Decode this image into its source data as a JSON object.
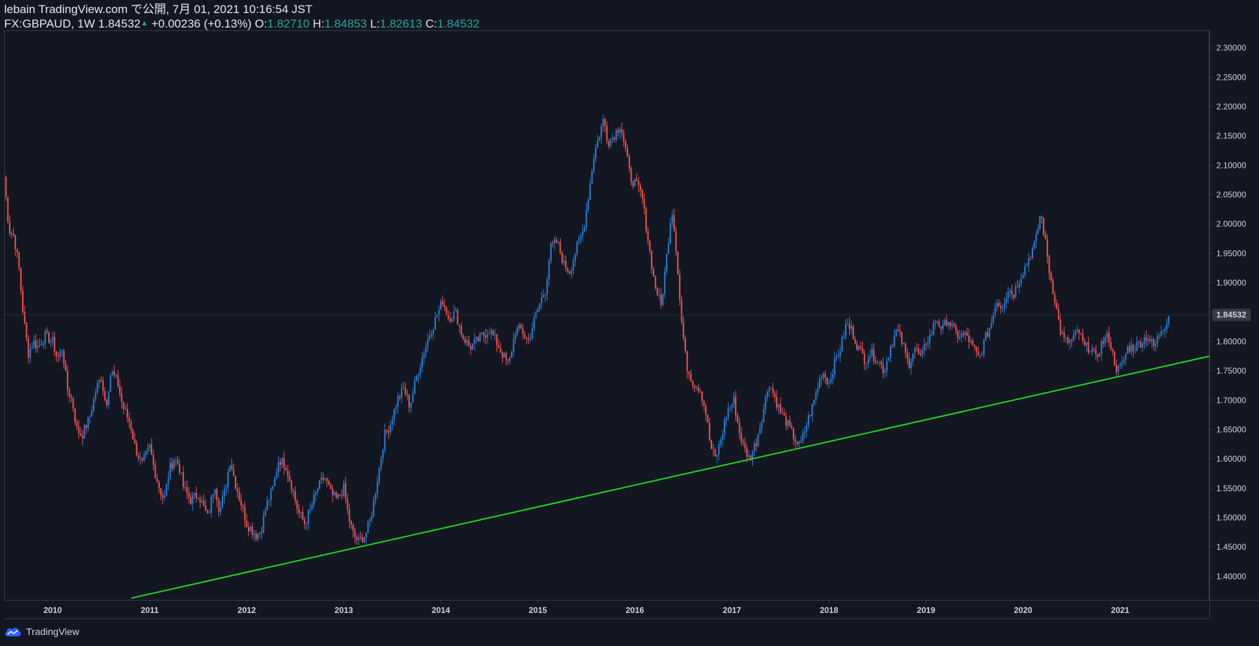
{
  "header": {
    "line1": "lebain TradingView.com で公開, 7月 01, 2021 10:16:54 JST",
    "symbol_prefix": "FX:GBPAUD, 1W 1.84532",
    "change": "+0.00236 (+0.13%)",
    "o_label": "O:",
    "o_value": "1.82710",
    "h_label": "H:",
    "h_value": "1.84853",
    "l_label": "L:",
    "l_value": "1.82613",
    "c_label": "C:",
    "c_value": "1.84532"
  },
  "footer": {
    "brand": "TradingView"
  },
  "colors": {
    "background": "#131722",
    "bullish": "#2a7fd4",
    "bearish": "#ef5350",
    "trendline": "#22d422",
    "last_price_tag": "#363a45"
  },
  "chart_data": {
    "type": "candlestick",
    "symbol": "FX:GBPAUD",
    "timeframe": "1W",
    "ylim": [
      1.36,
      2.33
    ],
    "xlim": [
      2009.5,
      2021.92
    ],
    "y_ticks": [
      "1.40000",
      "1.45000",
      "1.50000",
      "1.55000",
      "1.60000",
      "1.65000",
      "1.70000",
      "1.75000",
      "1.80000",
      "1.85000",
      "1.90000",
      "1.95000",
      "2.00000",
      "2.05000",
      "2.10000",
      "2.15000",
      "2.20000",
      "2.25000",
      "2.30000"
    ],
    "x_ticks": [
      "2010",
      "2011",
      "2012",
      "2013",
      "2014",
      "2015",
      "2016",
      "2017",
      "2018",
      "2019",
      "2020",
      "2021"
    ],
    "last_price": "1.84532",
    "trendline": {
      "x1": 2010.81,
      "y1": 1.363,
      "x2": 2021.92,
      "y2": 1.775
    },
    "price_path": [
      [
        2009.5,
        2.08
      ],
      [
        2009.55,
        1.99
      ],
      [
        2009.6,
        1.98
      ],
      [
        2009.65,
        1.93
      ],
      [
        2009.7,
        1.84
      ],
      [
        2009.75,
        1.78
      ],
      [
        2009.8,
        1.8
      ],
      [
        2009.85,
        1.79
      ],
      [
        2009.92,
        1.81
      ],
      [
        2010.0,
        1.8
      ],
      [
        2010.05,
        1.77
      ],
      [
        2010.1,
        1.79
      ],
      [
        2010.15,
        1.72
      ],
      [
        2010.2,
        1.7
      ],
      [
        2010.25,
        1.65
      ],
      [
        2010.3,
        1.64
      ],
      [
        2010.38,
        1.67
      ],
      [
        2010.45,
        1.72
      ],
      [
        2010.5,
        1.74
      ],
      [
        2010.55,
        1.69
      ],
      [
        2010.6,
        1.75
      ],
      [
        2010.67,
        1.73
      ],
      [
        2010.72,
        1.69
      ],
      [
        2010.8,
        1.66
      ],
      [
        2010.85,
        1.62
      ],
      [
        2010.92,
        1.59
      ],
      [
        2011.0,
        1.62
      ],
      [
        2011.05,
        1.58
      ],
      [
        2011.1,
        1.55
      ],
      [
        2011.15,
        1.53
      ],
      [
        2011.2,
        1.58
      ],
      [
        2011.25,
        1.6
      ],
      [
        2011.3,
        1.59
      ],
      [
        2011.35,
        1.55
      ],
      [
        2011.42,
        1.53
      ],
      [
        2011.5,
        1.54
      ],
      [
        2011.55,
        1.52
      ],
      [
        2011.6,
        1.5
      ],
      [
        2011.67,
        1.56
      ],
      [
        2011.72,
        1.51
      ],
      [
        2011.78,
        1.55
      ],
      [
        2011.83,
        1.6
      ],
      [
        2011.88,
        1.56
      ],
      [
        2011.95,
        1.52
      ],
      [
        2012.0,
        1.49
      ],
      [
        2012.05,
        1.48
      ],
      [
        2012.1,
        1.47
      ],
      [
        2012.15,
        1.48
      ],
      [
        2012.2,
        1.52
      ],
      [
        2012.27,
        1.55
      ],
      [
        2012.33,
        1.6
      ],
      [
        2012.4,
        1.59
      ],
      [
        2012.47,
        1.55
      ],
      [
        2012.53,
        1.51
      ],
      [
        2012.6,
        1.49
      ],
      [
        2012.67,
        1.52
      ],
      [
        2012.73,
        1.55
      ],
      [
        2012.8,
        1.57
      ],
      [
        2012.87,
        1.54
      ],
      [
        2012.93,
        1.53
      ],
      [
        2013.0,
        1.55
      ],
      [
        2013.05,
        1.5
      ],
      [
        2013.1,
        1.47
      ],
      [
        2013.15,
        1.46
      ],
      [
        2013.22,
        1.47
      ],
      [
        2013.28,
        1.5
      ],
      [
        2013.35,
        1.57
      ],
      [
        2013.42,
        1.64
      ],
      [
        2013.48,
        1.66
      ],
      [
        2013.55,
        1.7
      ],
      [
        2013.62,
        1.72
      ],
      [
        2013.68,
        1.69
      ],
      [
        2013.75,
        1.74
      ],
      [
        2013.82,
        1.78
      ],
      [
        2013.88,
        1.81
      ],
      [
        2013.95,
        1.84
      ],
      [
        2014.02,
        1.87
      ],
      [
        2014.08,
        1.84
      ],
      [
        2014.15,
        1.85
      ],
      [
        2014.22,
        1.81
      ],
      [
        2014.3,
        1.79
      ],
      [
        2014.37,
        1.8
      ],
      [
        2014.43,
        1.81
      ],
      [
        2014.5,
        1.82
      ],
      [
        2014.57,
        1.8
      ],
      [
        2014.63,
        1.78
      ],
      [
        2014.7,
        1.76
      ],
      [
        2014.77,
        1.82
      ],
      [
        2014.83,
        1.82
      ],
      [
        2014.9,
        1.8
      ],
      [
        2014.97,
        1.84
      ],
      [
        2015.03,
        1.87
      ],
      [
        2015.08,
        1.89
      ],
      [
        2015.13,
        1.96
      ],
      [
        2015.2,
        1.97
      ],
      [
        2015.27,
        1.93
      ],
      [
        2015.33,
        1.92
      ],
      [
        2015.4,
        1.96
      ],
      [
        2015.47,
        1.99
      ],
      [
        2015.53,
        2.06
      ],
      [
        2015.58,
        2.12
      ],
      [
        2015.63,
        2.15
      ],
      [
        2015.68,
        2.18
      ],
      [
        2015.72,
        2.14
      ],
      [
        2015.78,
        2.15
      ],
      [
        2015.85,
        2.17
      ],
      [
        2015.9,
        2.13
      ],
      [
        2015.95,
        2.08
      ],
      [
        2016.0,
        2.07
      ],
      [
        2016.07,
        2.05
      ],
      [
        2016.13,
        1.98
      ],
      [
        2016.2,
        1.9
      ],
      [
        2016.27,
        1.86
      ],
      [
        2016.33,
        1.95
      ],
      [
        2016.38,
        2.03
      ],
      [
        2016.43,
        1.95
      ],
      [
        2016.47,
        1.85
      ],
      [
        2016.53,
        1.76
      ],
      [
        2016.6,
        1.73
      ],
      [
        2016.67,
        1.72
      ],
      [
        2016.73,
        1.68
      ],
      [
        2016.78,
        1.62
      ],
      [
        2016.83,
        1.6
      ],
      [
        2016.88,
        1.63
      ],
      [
        2016.95,
        1.68
      ],
      [
        2017.02,
        1.7
      ],
      [
        2017.07,
        1.65
      ],
      [
        2017.12,
        1.62
      ],
      [
        2017.18,
        1.6
      ],
      [
        2017.25,
        1.63
      ],
      [
        2017.32,
        1.68
      ],
      [
        2017.38,
        1.73
      ],
      [
        2017.43,
        1.71
      ],
      [
        2017.5,
        1.68
      ],
      [
        2017.57,
        1.66
      ],
      [
        2017.63,
        1.64
      ],
      [
        2017.7,
        1.62
      ],
      [
        2017.77,
        1.66
      ],
      [
        2017.83,
        1.69
      ],
      [
        2017.88,
        1.72
      ],
      [
        2017.93,
        1.75
      ],
      [
        2018.0,
        1.73
      ],
      [
        2018.05,
        1.76
      ],
      [
        2018.12,
        1.79
      ],
      [
        2018.18,
        1.83
      ],
      [
        2018.23,
        1.82
      ],
      [
        2018.3,
        1.79
      ],
      [
        2018.37,
        1.77
      ],
      [
        2018.43,
        1.78
      ],
      [
        2018.5,
        1.77
      ],
      [
        2018.57,
        1.75
      ],
      [
        2018.63,
        1.79
      ],
      [
        2018.7,
        1.82
      ],
      [
        2018.75,
        1.8
      ],
      [
        2018.82,
        1.76
      ],
      [
        2018.88,
        1.79
      ],
      [
        2018.95,
        1.77
      ],
      [
        2019.0,
        1.8
      ],
      [
        2019.05,
        1.81
      ],
      [
        2019.1,
        1.84
      ],
      [
        2019.17,
        1.82
      ],
      [
        2019.22,
        1.84
      ],
      [
        2019.28,
        1.82
      ],
      [
        2019.33,
        1.81
      ],
      [
        2019.42,
        1.81
      ],
      [
        2019.48,
        1.79
      ],
      [
        2019.55,
        1.77
      ],
      [
        2019.6,
        1.8
      ],
      [
        2019.67,
        1.83
      ],
      [
        2019.72,
        1.87
      ],
      [
        2019.78,
        1.86
      ],
      [
        2019.85,
        1.89
      ],
      [
        2019.9,
        1.88
      ],
      [
        2019.97,
        1.91
      ],
      [
        2020.03,
        1.93
      ],
      [
        2020.08,
        1.95
      ],
      [
        2020.13,
        1.97
      ],
      [
        2020.18,
        2.02
      ],
      [
        2020.22,
        1.98
      ],
      [
        2020.27,
        1.92
      ],
      [
        2020.33,
        1.87
      ],
      [
        2020.38,
        1.82
      ],
      [
        2020.43,
        1.8
      ],
      [
        2020.5,
        1.8
      ],
      [
        2020.57,
        1.82
      ],
      [
        2020.63,
        1.79
      ],
      [
        2020.7,
        1.79
      ],
      [
        2020.75,
        1.77
      ],
      [
        2020.82,
        1.8
      ],
      [
        2020.88,
        1.81
      ],
      [
        2020.92,
        1.78
      ],
      [
        2020.97,
        1.75
      ],
      [
        2021.02,
        1.76
      ],
      [
        2021.08,
        1.79
      ],
      [
        2021.15,
        1.79
      ],
      [
        2021.22,
        1.8
      ],
      [
        2021.28,
        1.81
      ],
      [
        2021.35,
        1.79
      ],
      [
        2021.42,
        1.82
      ],
      [
        2021.47,
        1.83
      ],
      [
        2021.5,
        1.845
      ]
    ]
  }
}
